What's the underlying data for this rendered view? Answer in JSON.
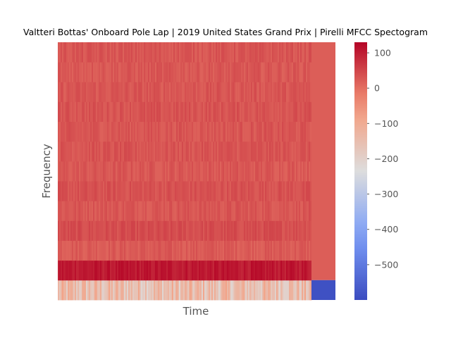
{
  "chart_data": {
    "type": "heatmap",
    "title": "Valtteri Bottas' Onboard Pole Lap | 2019 United States Grand Prix | Pirelli MFCC Spectogram",
    "xlabel": "Time",
    "ylabel": "Frequency",
    "x_ticks_visible": false,
    "y_ticks_visible": false,
    "grid": false,
    "colormap": "coolwarm",
    "colorbar": {
      "min": -600,
      "max": 130,
      "ticks": [
        100,
        0,
        -100,
        -200,
        -300,
        -400,
        -500
      ],
      "tick_labels": [
        "100",
        "0",
        "−100",
        "−200",
        "−300",
        "−400",
        "−500"
      ]
    },
    "n_coefficients": 13,
    "band_mean_values": [
      {
        "coefficient": 1,
        "value": -150
      },
      {
        "coefficient": 2,
        "value": 105
      },
      {
        "coefficient": 3,
        "value": 25
      },
      {
        "coefficient": 4,
        "value": 40
      },
      {
        "coefficient": 5,
        "value": 30
      },
      {
        "coefficient": 6,
        "value": 35
      },
      {
        "coefficient": 7,
        "value": 28
      },
      {
        "coefficient": 8,
        "value": 32
      },
      {
        "coefficient": 9,
        "value": 30
      },
      {
        "coefficient": 10,
        "value": 33
      },
      {
        "coefficient": 11,
        "value": 30
      },
      {
        "coefficient": 12,
        "value": 28
      },
      {
        "coefficient": 13,
        "value": 30
      }
    ],
    "tail_segment": {
      "coefficient_1_value": -590,
      "other_coefficients_value": 20
    }
  }
}
